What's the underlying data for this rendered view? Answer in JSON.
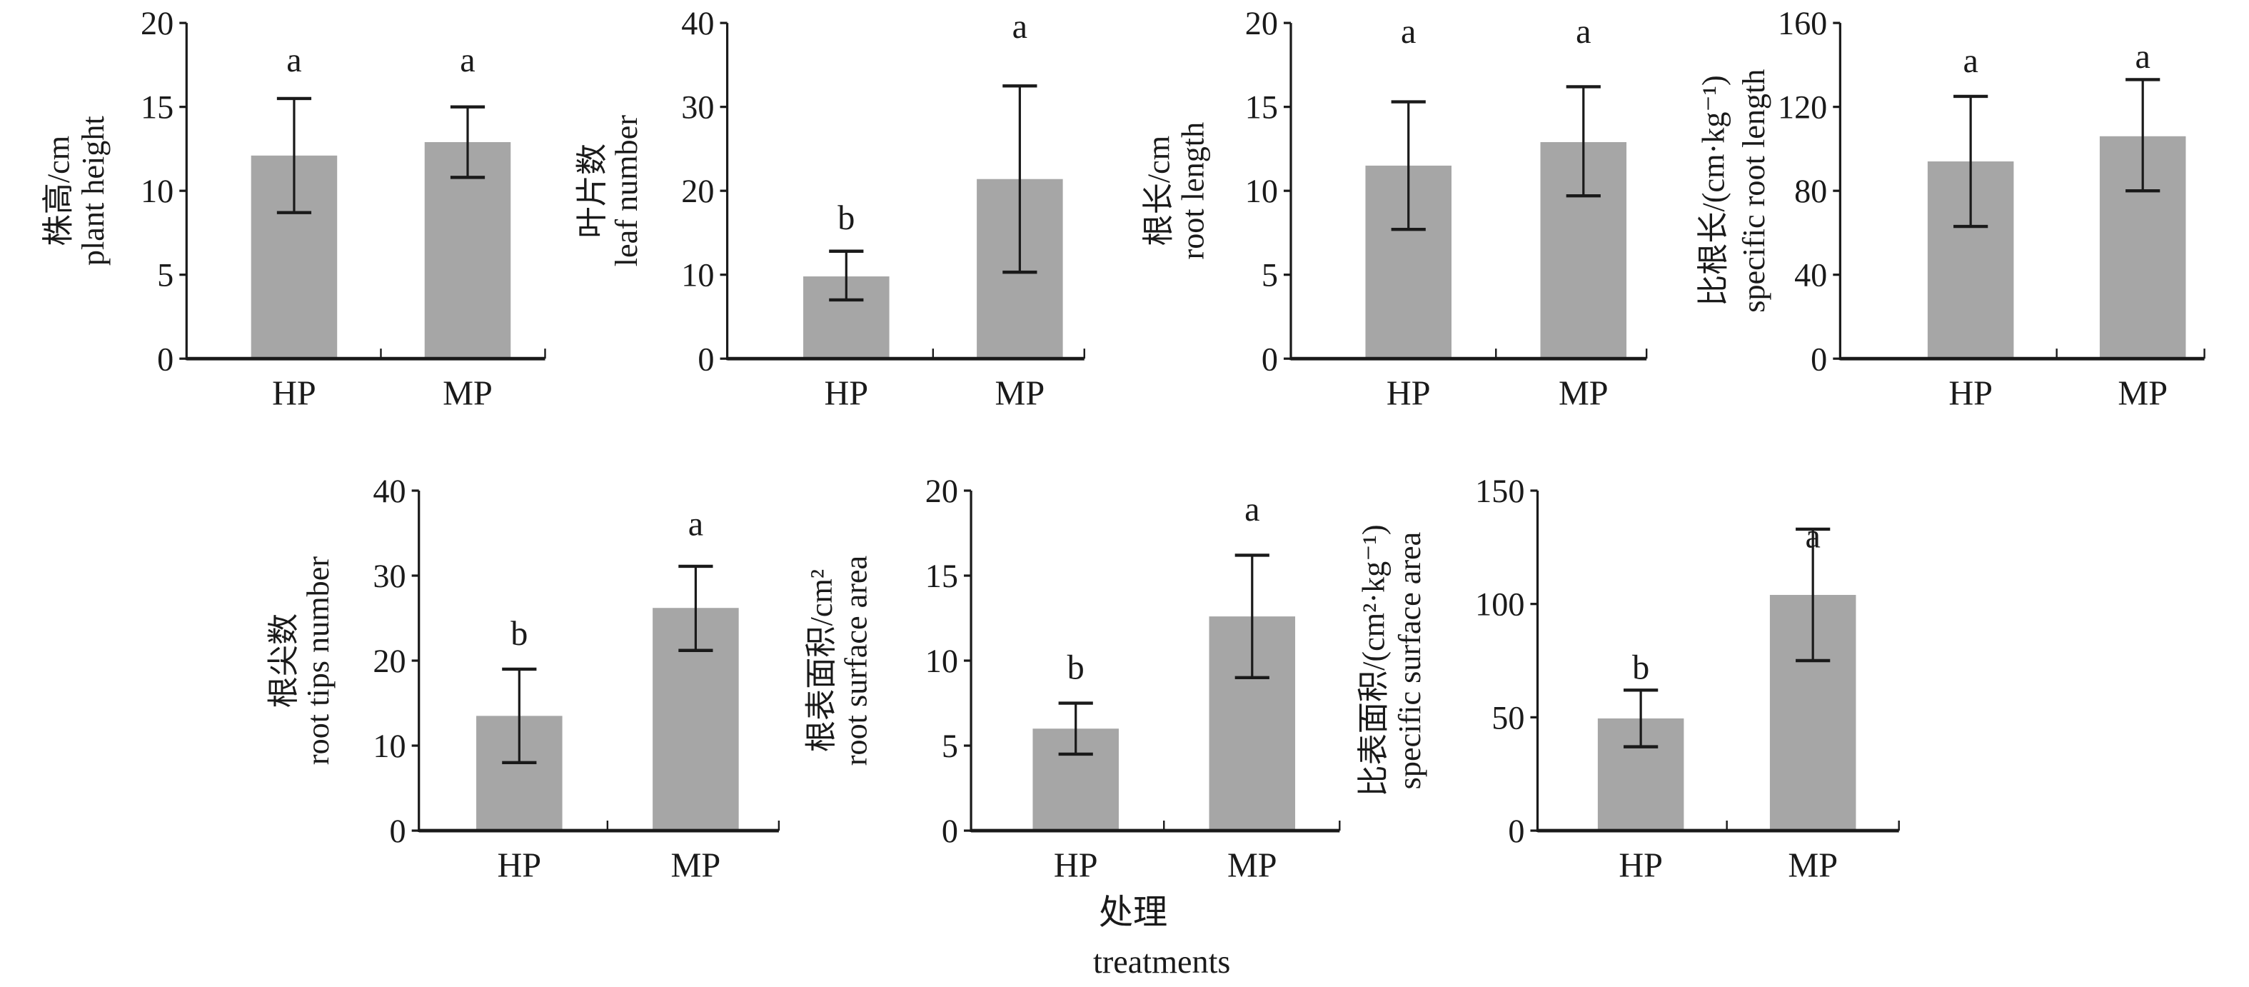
{
  "colors": {
    "bar": "#a6a6a6",
    "axis": "#1a1a1a"
  },
  "chart_data": [
    {
      "type": "bar",
      "ylabel": [
        "株高/cm",
        "plant height"
      ],
      "ylim": [
        0,
        20
      ],
      "yticks": [
        0,
        5,
        10,
        15,
        20
      ],
      "categories": [
        "HP",
        "MP"
      ],
      "values": [
        12.1,
        12.9
      ],
      "err_low": [
        8.7,
        10.8
      ],
      "err_high": [
        15.5,
        15.0
      ],
      "letters": [
        "a",
        "a"
      ],
      "letter_y": [
        17.8,
        17.8
      ]
    },
    {
      "type": "bar",
      "ylabel": [
        "叶片数",
        "leaf number"
      ],
      "ylim": [
        0,
        40
      ],
      "yticks": [
        0,
        10,
        20,
        30,
        40
      ],
      "categories": [
        "HP",
        "MP"
      ],
      "values": [
        9.8,
        21.4
      ],
      "err_low": [
        7.0,
        10.3
      ],
      "err_high": [
        12.8,
        32.5
      ],
      "letters": [
        "b",
        "a"
      ],
      "letter_y": [
        16.8,
        39.6
      ]
    },
    {
      "type": "bar",
      "ylabel": [
        "根长/cm",
        "root length"
      ],
      "ylim": [
        0,
        20
      ],
      "yticks": [
        0,
        5,
        10,
        15,
        20
      ],
      "categories": [
        "HP",
        "MP"
      ],
      "values": [
        11.5,
        12.9
      ],
      "err_low": [
        7.7,
        9.7
      ],
      "err_high": [
        15.3,
        16.2
      ],
      "letters": [
        "a",
        "a"
      ],
      "letter_y": [
        19.5,
        19.5
      ]
    },
    {
      "type": "bar",
      "ylabel": [
        "比根长/(cm·kg⁻¹)",
        "specific root length"
      ],
      "ylim": [
        0,
        160
      ],
      "yticks": [
        0,
        40,
        80,
        120,
        160
      ],
      "categories": [
        "HP",
        "MP"
      ],
      "values": [
        94,
        106
      ],
      "err_low": [
        63,
        80
      ],
      "err_high": [
        125,
        133
      ],
      "letters": [
        "a",
        "a"
      ],
      "letter_y": [
        142,
        144
      ]
    },
    {
      "type": "bar",
      "ylabel": [
        "根尖数",
        "root tips number"
      ],
      "ylim": [
        0,
        40
      ],
      "yticks": [
        0,
        10,
        20,
        30,
        40
      ],
      "categories": [
        "HP",
        "MP"
      ],
      "values": [
        13.5,
        26.2
      ],
      "err_low": [
        8.0,
        21.2
      ],
      "err_high": [
        19.0,
        31.1
      ],
      "letters": [
        "b",
        "a"
      ],
      "letter_y": [
        23.2,
        36.1
      ]
    },
    {
      "type": "bar",
      "ylabel": [
        "根表面积/cm²",
        "root surface area"
      ],
      "ylim": [
        0,
        20
      ],
      "yticks": [
        0,
        5,
        10,
        15,
        20
      ],
      "categories": [
        "HP",
        "MP"
      ],
      "values": [
        6.0,
        12.6
      ],
      "err_low": [
        4.5,
        9.0
      ],
      "err_high": [
        7.5,
        16.2
      ],
      "letters": [
        "b",
        "a"
      ],
      "letter_y": [
        9.6,
        18.9
      ]
    },
    {
      "type": "bar",
      "ylabel": [
        "比表面积/(cm²·kg⁻¹)",
        "specific surface area"
      ],
      "ylim": [
        0,
        150
      ],
      "yticks": [
        0,
        50,
        100,
        150
      ],
      "categories": [
        "HP",
        "MP"
      ],
      "values": [
        49.5,
        104
      ],
      "err_low": [
        37,
        75
      ],
      "err_high": [
        62,
        133
      ],
      "letters": [
        "b",
        "a"
      ],
      "letter_y": [
        72,
        130
      ]
    }
  ],
  "xlabel": {
    "zh": "处理",
    "en": "treatments"
  }
}
